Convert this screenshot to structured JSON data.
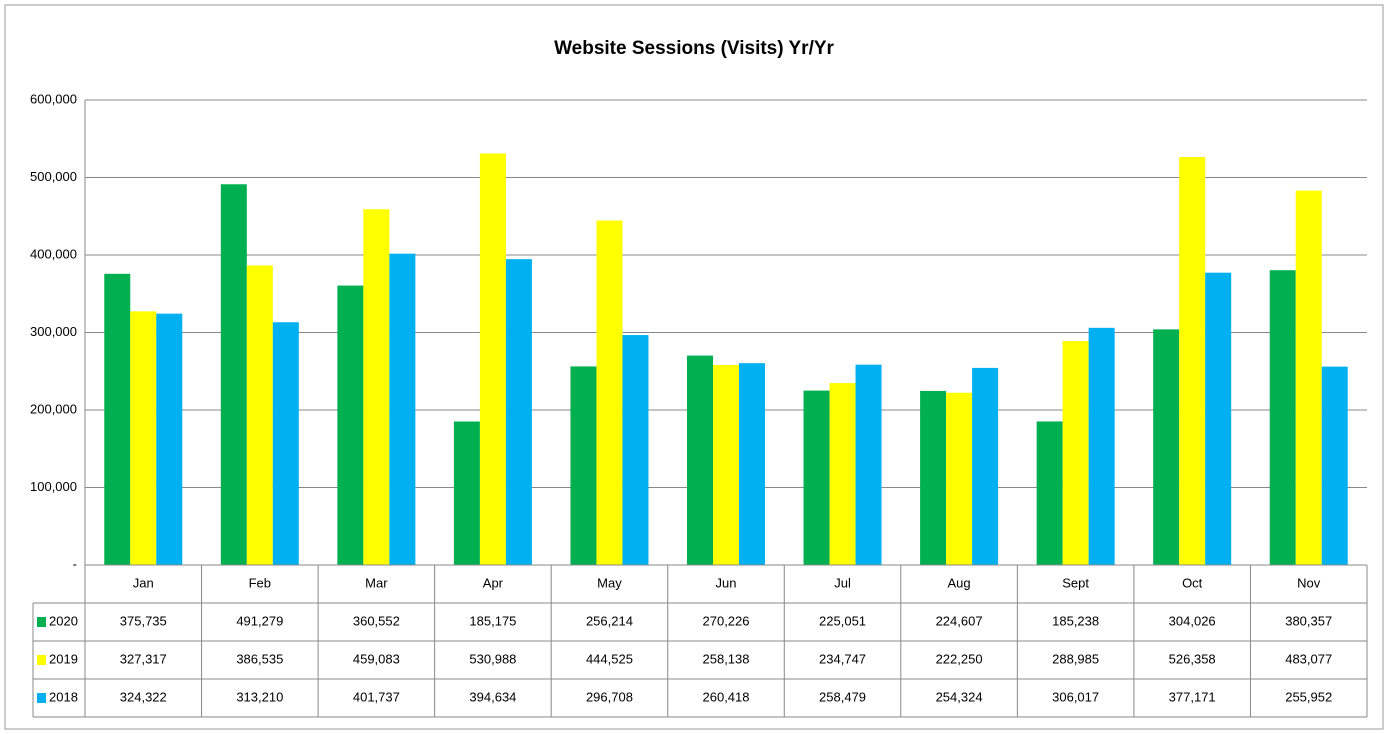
{
  "chart_data": {
    "type": "bar",
    "title": "Website Sessions (Visits) Yr/Yr",
    "categories": [
      "Jan",
      "Feb",
      "Mar",
      "Apr",
      "May",
      "Jun",
      "Jul",
      "Aug",
      "Sept",
      "Oct",
      "Nov"
    ],
    "series": [
      {
        "name": "2020",
        "color": "#00b050",
        "values": [
          375735,
          491279,
          360552,
          185175,
          256214,
          270226,
          225051,
          224607,
          185238,
          304026,
          380357
        ],
        "value_labels": [
          "375,735",
          "491,279",
          "360,552",
          "185,175",
          "256,214",
          "270,226",
          "225,051",
          "224,607",
          "185,238",
          "304,026",
          "380,357"
        ]
      },
      {
        "name": "2019",
        "color": "#ffff00",
        "values": [
          327317,
          386535,
          459083,
          530988,
          444525,
          258138,
          234747,
          222250,
          288985,
          526358,
          483077
        ],
        "value_labels": [
          "327,317",
          "386,535",
          "459,083",
          "530,988",
          "444,525",
          "258,138",
          "234,747",
          "222,250",
          "288,985",
          "526,358",
          "483,077"
        ]
      },
      {
        "name": "2018",
        "color": "#00b0f0",
        "values": [
          324322,
          313210,
          401737,
          394634,
          296708,
          260418,
          258479,
          254324,
          306017,
          377171,
          255952
        ],
        "value_labels": [
          "324,322",
          "313,210",
          "401,737",
          "394,634",
          "296,708",
          "260,418",
          "258,479",
          "254,324",
          "306,017",
          "377,171",
          "255,952"
        ]
      }
    ],
    "ylim": [
      0,
      600000
    ],
    "yticks": [
      {
        "value": 0,
        "label": "-"
      },
      {
        "value": 100000,
        "label": "100,000"
      },
      {
        "value": 200000,
        "label": "200,000"
      },
      {
        "value": 300000,
        "label": "300,000"
      },
      {
        "value": 400000,
        "label": "400,000"
      },
      {
        "value": 500000,
        "label": "500,000"
      },
      {
        "value": 600000,
        "label": "600,000"
      }
    ],
    "grid": true
  }
}
